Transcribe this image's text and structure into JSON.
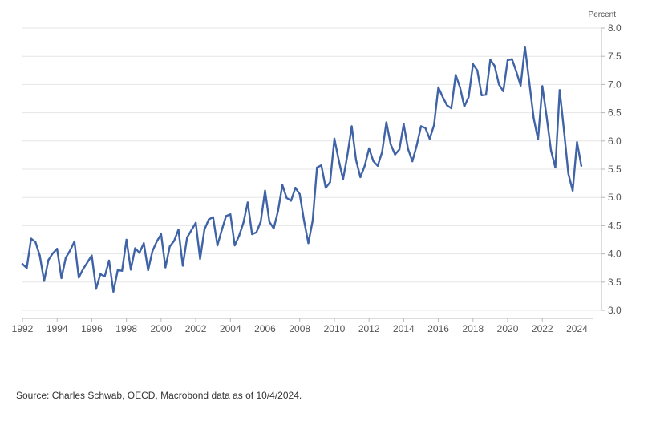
{
  "chart_data": {
    "type": "line",
    "ylabel": "Percent",
    "ylim": [
      3.0,
      8.0
    ],
    "y_ticks": [
      "3.0",
      "3.5",
      "4.0",
      "4.5",
      "5.0",
      "5.5",
      "6.0",
      "6.5",
      "7.0",
      "7.5",
      "8.0"
    ],
    "x_ticks": [
      "1992",
      "1994",
      "1996",
      "1998",
      "2000",
      "2002",
      "2004",
      "2006",
      "2008",
      "2010",
      "2012",
      "2014",
      "2016",
      "2018",
      "2020",
      "2022",
      "2024"
    ],
    "xlim": [
      1992,
      2024.9
    ],
    "grid": true,
    "series": [
      {
        "color": "#3f63a6",
        "x": [
          1992.0,
          1992.25,
          1992.5,
          1992.75,
          1993.0,
          1993.25,
          1993.5,
          1993.75,
          1994.0,
          1994.25,
          1994.5,
          1994.75,
          1995.0,
          1995.25,
          1995.5,
          1995.75,
          1996.0,
          1996.25,
          1996.5,
          1996.75,
          1997.0,
          1997.25,
          1997.5,
          1997.75,
          1998.0,
          1998.25,
          1998.5,
          1998.75,
          1999.0,
          1999.25,
          1999.5,
          1999.75,
          2000.0,
          2000.25,
          2000.5,
          2000.75,
          2001.0,
          2001.25,
          2001.5,
          2001.75,
          2002.0,
          2002.25,
          2002.5,
          2002.75,
          2003.0,
          2003.25,
          2003.5,
          2003.75,
          2004.0,
          2004.25,
          2004.5,
          2004.75,
          2005.0,
          2005.25,
          2005.5,
          2005.75,
          2006.0,
          2006.25,
          2006.5,
          2006.75,
          2007.0,
          2007.25,
          2007.5,
          2007.75,
          2008.0,
          2008.25,
          2008.5,
          2008.75,
          2009.0,
          2009.25,
          2009.5,
          2009.75,
          2010.0,
          2010.25,
          2010.5,
          2010.75,
          2011.0,
          2011.25,
          2011.5,
          2011.75,
          2012.0,
          2012.25,
          2012.5,
          2012.75,
          2013.0,
          2013.25,
          2013.5,
          2013.75,
          2014.0,
          2014.25,
          2014.5,
          2014.75,
          2015.0,
          2015.25,
          2015.5,
          2015.75,
          2016.0,
          2016.25,
          2016.5,
          2016.75,
          2017.0,
          2017.25,
          2017.5,
          2017.75,
          2018.0,
          2018.25,
          2018.5,
          2018.75,
          2019.0,
          2019.25,
          2019.5,
          2019.75,
          2020.0,
          2020.25,
          2020.5,
          2020.75,
          2021.0,
          2021.25,
          2021.5,
          2021.75,
          2022.0,
          2022.25,
          2022.5,
          2022.75,
          2023.0,
          2023.25,
          2023.5,
          2023.75,
          2024.0,
          2024.25
        ],
        "values": [
          3.82,
          3.75,
          4.27,
          4.21,
          3.97,
          3.52,
          3.89,
          4.01,
          4.09,
          3.57,
          3.93,
          4.06,
          4.22,
          3.58,
          3.73,
          3.85,
          3.97,
          3.38,
          3.64,
          3.6,
          3.88,
          3.33,
          3.71,
          3.7,
          4.25,
          3.72,
          4.1,
          4.02,
          4.19,
          3.71,
          4.05,
          4.22,
          4.35,
          3.76,
          4.13,
          4.23,
          4.43,
          3.79,
          4.29,
          4.42,
          4.55,
          3.91,
          4.43,
          4.61,
          4.65,
          4.15,
          4.42,
          4.67,
          4.7,
          4.15,
          4.32,
          4.55,
          4.91,
          4.35,
          4.38,
          4.57,
          5.12,
          4.57,
          4.45,
          4.76,
          5.22,
          4.99,
          4.94,
          5.17,
          5.06,
          4.59,
          4.19,
          4.59,
          5.53,
          5.57,
          5.17,
          5.27,
          6.04,
          5.66,
          5.32,
          5.75,
          6.26,
          5.66,
          5.36,
          5.56,
          5.87,
          5.64,
          5.56,
          5.8,
          6.33,
          5.94,
          5.76,
          5.85,
          6.3,
          5.86,
          5.64,
          5.92,
          6.26,
          6.23,
          6.04,
          6.28,
          6.95,
          6.78,
          6.63,
          6.58,
          7.17,
          6.95,
          6.61,
          6.78,
          7.36,
          7.25,
          6.81,
          6.82,
          7.44,
          7.33,
          7.0,
          6.88,
          7.43,
          7.45,
          7.23,
          6.98,
          7.67,
          7.04,
          6.4,
          6.03,
          6.97,
          6.42,
          5.83,
          5.53,
          6.9,
          6.18,
          5.42,
          5.12,
          5.98,
          5.56
        ]
      }
    ]
  },
  "source_note": "Source: Charles Schwab, OECD, Macrobond data as of 10/4/2024."
}
